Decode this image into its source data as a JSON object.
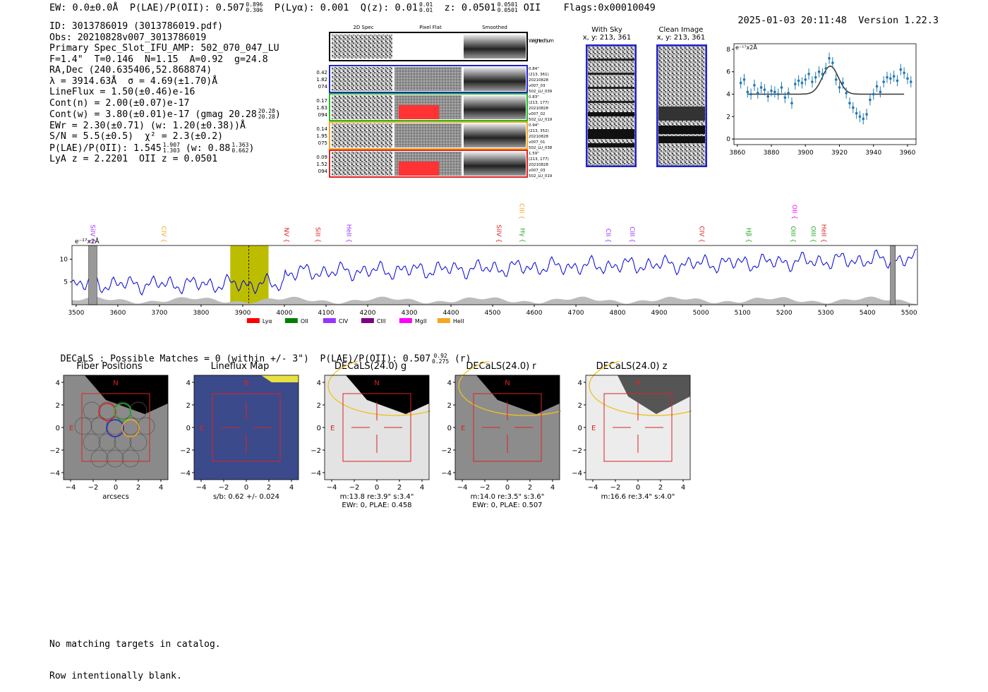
{
  "header": {
    "ew": "EW: 0.0±0.0Å",
    "plae_label": "P(LAE)/P(OII):",
    "plae_value": "0.507",
    "plae_hi": "0.896",
    "plae_lo": "0.306",
    "plya": "P(Lyα): 0.001",
    "qz_label": "Q(z):",
    "qz_value": "0.01",
    "qz_hi": "0.01",
    "qz_lo": "0.01",
    "z_label": "z:",
    "z_value": "0.0501",
    "z_hi": "0.0501",
    "z_lo": "0.0501",
    "z_line": "OII",
    "flags": "Flags:0x00010049",
    "timestamp": "2025-01-03 20:11:48",
    "version": "Version 1.22.3"
  },
  "info": {
    "id": "ID: 3013786019 (3013786019.pdf)",
    "obs": "Obs: 20210828v007_3013786019",
    "primary": "Primary Spec_Slot_IFU_AMP: 502_070_047_LU",
    "params": "F=1.4\"  T=0.146  N=1.15  A=0.92  g=24.8",
    "radec": "RA,Dec (240.635406,52.868874)",
    "lambda": "λ = 3914.63Å  σ = 4.69(±1.70)Å",
    "lineflux": "LineFlux = 1.50(±0.46)e-16",
    "contn": "Cont(n) = 2.00(±0.07)e-17",
    "contw": "Cont(w) = 3.80(±0.01)e-17 (gmag 20.28",
    "contw_hi": "20.28",
    "contw_lo": "20.28",
    "ewr": "EWr = 2.30(±0.71) (w: 1.20(±0.38))Å",
    "sn": "S/N = 5.5(±0.5)  χ² = 2.3(±0.2)",
    "plae": "P(LAE)/P(OII): 1.545",
    "plae_hi": "1.907",
    "plae_lo": "1.303",
    "plae_w": "(w: 0.88",
    "plae_w_hi": "1.363",
    "plae_w_lo": "0.662",
    "lya_z": "LyA z = 2.2201  OII z = 0.0501"
  },
  "cutouts": {
    "col_titles": [
      "2D Spec",
      "Pixel Flat",
      "Smoothed"
    ],
    "weighted_label": "Weighted Sum",
    "rows": [
      {
        "left": [
          "0.42",
          "1.82",
          "074"
        ],
        "right": [
          "0.84\"",
          "(213, 361)",
          "20210828",
          "v007_03",
          "502_LU_039"
        ],
        "color": "#2222cc"
      },
      {
        "left": [
          "0.17",
          "1.63",
          "094"
        ],
        "right": [
          "0.83\"",
          "(213, 177)",
          "20210828",
          "v007_02",
          "502_LU_019"
        ],
        "color": "#22bb22"
      },
      {
        "left": [
          "0.14",
          "1.95",
          "075"
        ],
        "right": [
          "0.94\"",
          "(213, 352)",
          "20210828",
          "v007_01",
          "502_LU_038"
        ],
        "color": "#f5a623"
      },
      {
        "left": [
          "0.09",
          "1.52",
          "094"
        ],
        "right": [
          "1.59\"",
          "(213, 177)",
          "20210828",
          "v007_03",
          "502_LU_019"
        ],
        "color": "#dd2222"
      }
    ]
  },
  "sky_panels": {
    "with_sky_title": "With Sky",
    "with_sky_sub": "x, y: 213, 361",
    "clean_title": "Clean Image",
    "clean_sub": "x, y: 213, 361"
  },
  "chart_data": [
    {
      "type": "line",
      "title": "",
      "ylabel": "e⁻¹⁷x2Å",
      "xlim": [
        3858,
        3965
      ],
      "ylim": [
        -0.5,
        8.5
      ],
      "xticks": [
        3860,
        3880,
        3900,
        3920,
        3940,
        3960
      ],
      "yticks": [
        0,
        2,
        4,
        6,
        8
      ],
      "data_x": [
        3862,
        3864,
        3866,
        3868,
        3870,
        3872,
        3874,
        3876,
        3878,
        3880,
        3882,
        3884,
        3886,
        3888,
        3890,
        3892,
        3894,
        3896,
        3898,
        3900,
        3902,
        3904,
        3906,
        3908,
        3910,
        3912,
        3914,
        3916,
        3918,
        3920,
        3922,
        3924,
        3926,
        3928,
        3930,
        3932,
        3934,
        3936,
        3938,
        3940,
        3942,
        3944,
        3946,
        3948,
        3950,
        3952,
        3954,
        3956,
        3958,
        3960,
        3962
      ],
      "data_y": [
        5.0,
        5.3,
        4.2,
        4.0,
        4.8,
        4.1,
        4.6,
        4.4,
        3.8,
        4.3,
        4.2,
        4.0,
        4.6,
        3.7,
        4.1,
        3.2,
        4.9,
        5.2,
        5.0,
        5.3,
        5.8,
        5.1,
        5.5,
        6.0,
        5.8,
        6.3,
        7.2,
        6.8,
        5.3,
        4.6,
        5.0,
        4.1,
        3.2,
        2.8,
        2.3,
        2.0,
        1.8,
        2.2,
        3.5,
        4.0,
        4.7,
        4.2,
        5.1,
        5.5,
        5.4,
        5.6,
        5.2,
        6.2,
        5.9,
        5.4,
        5.1
      ],
      "fit": {
        "continuum": 4.0,
        "center": 3914.63,
        "sigma": 4.69,
        "peak": 6.5
      },
      "series_color": "#1f77b4"
    },
    {
      "type": "line",
      "ylabel": "e⁻¹⁷x2Å",
      "xlim": [
        3490,
        5520
      ],
      "ylim": [
        0,
        13
      ],
      "xticks": [
        3500,
        3600,
        3700,
        3800,
        3900,
        4000,
        4100,
        4200,
        4300,
        4400,
        4500,
        4600,
        4700,
        4800,
        4900,
        5000,
        5100,
        5200,
        5300,
        5400,
        5500
      ],
      "yticks": [
        5,
        10
      ],
      "highlight_band": [
        3870,
        3962
      ],
      "line_center": 3914.63,
      "bad_regions": [
        [
          3530,
          3550
        ],
        [
          5455,
          5467
        ]
      ],
      "line_markers": [
        {
          "label": "SiIV",
          "wave": 3530,
          "color": "#9933ff",
          "level": 0
        },
        {
          "label": "CIV",
          "wave": 3700,
          "color": "#f5a623",
          "level": 0
        },
        {
          "label": "NV",
          "wave": 3995,
          "color": "#dd2222",
          "level": 0
        },
        {
          "label": "SiII",
          "wave": 4070,
          "color": "#dd2222",
          "level": 0
        },
        {
          "label": "HeII",
          "wave": 4145,
          "color": "#9933ff",
          "level": 0
        },
        {
          "label": "SiIV",
          "wave": 4505,
          "color": "#dd2222",
          "level": 0
        },
        {
          "label": "CIII",
          "wave": 4560,
          "color": "#f5a623",
          "level": 1
        },
        {
          "label": "Hγ",
          "wave": 4562,
          "color": "#22aa22",
          "level": 0
        },
        {
          "label": "CII",
          "wave": 4768,
          "color": "#9933ff",
          "level": 0
        },
        {
          "label": "CIII",
          "wave": 4825,
          "color": "#9933ff",
          "level": 0
        },
        {
          "label": "CIV",
          "wave": 4992,
          "color": "#dd2222",
          "level": 0
        },
        {
          "label": "Hβ",
          "wave": 5105,
          "color": "#22aa22",
          "level": 0
        },
        {
          "label": "OIII",
          "wave": 5212,
          "color": "#22aa22",
          "level": 0
        },
        {
          "label": "OII",
          "wave": 5215,
          "color": "#ff00ff",
          "level": 1
        },
        {
          "label": "OIII",
          "wave": 5260,
          "color": "#22aa22",
          "level": 0
        },
        {
          "label": "HeII",
          "wave": 5285,
          "color": "#dd2222",
          "level": 0
        }
      ],
      "legend": [
        {
          "label": "Lyα",
          "color": "#ff0000"
        },
        {
          "label": "OII",
          "color": "#008000"
        },
        {
          "label": "CIV",
          "color": "#9933ff"
        },
        {
          "label": "CIII",
          "color": "#800080"
        },
        {
          "label": "MgII",
          "color": "#ff00ff"
        },
        {
          "label": "HeII",
          "color": "#f5a623"
        }
      ],
      "series_color": "#0000dd",
      "sky_color": "#bbbbbb"
    }
  ],
  "decals_header": {
    "text": "DECaLS : Possible Matches = 0 (within +/- 3\")  P(LAE)/P(OII): 0.507",
    "hi": "0.92",
    "lo": "0.275",
    "suffix": "(r)"
  },
  "thumbs": {
    "axis_ticks_y": [
      "4",
      "2",
      "0",
      "−2",
      "−4"
    ],
    "axis_ticks_x": [
      "−4",
      "−2",
      "0",
      "2",
      "4"
    ],
    "compass_n": "N",
    "compass_e": "E",
    "panels": [
      {
        "title": "Fiber Positions",
        "caption": [
          "arcsecs"
        ]
      },
      {
        "title": "Lineflux Map",
        "caption": [
          "s/b: 0.62 +/- 0.024"
        ]
      },
      {
        "title": "DECaLS(24.0) g",
        "caption": [
          "m:13.8  re:3.9\"  s:3.4\"",
          "EWr: 0, PLAE: 0.458"
        ]
      },
      {
        "title": "DECaLS(24.0) r",
        "caption": [
          "m:14.0  re:3.5\"  s:3.6\"",
          "EWr: 0, PLAE: 0.507"
        ]
      },
      {
        "title": "DECaLS(24.0) z",
        "caption": [
          "m:16.6  re:3.4\"  s:4.0\""
        ]
      }
    ]
  },
  "footer": {
    "line1": "No matching targets in catalog.",
    "line2": "Row intentionally blank."
  }
}
